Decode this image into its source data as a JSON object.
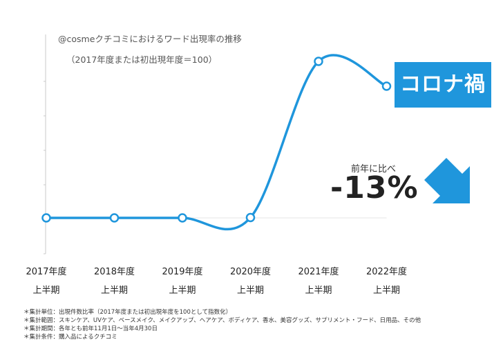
{
  "chart_data": {
    "type": "line",
    "title": "",
    "subtitle_line1": "@cosmeクチコミにおけるワード出現率の推移",
    "subtitle_line2": "（2017年度または初出現年度＝100）",
    "x": [
      {
        "year": "2017年度",
        "period": "上半期"
      },
      {
        "year": "2018年度",
        "period": "上半期"
      },
      {
        "year": "2019年度",
        "period": "上半期"
      },
      {
        "year": "2020年度",
        "period": "上半期"
      },
      {
        "year": "2021年度",
        "period": "上半期"
      },
      {
        "year": "2022年度",
        "period": "上半期"
      }
    ],
    "series": [
      {
        "values": [
          100,
          100,
          100,
          101,
          554,
          482
        ],
        "color": "#1f96dc"
      }
    ],
    "ylim": [
      0,
      620
    ],
    "y_ticks": [
      100,
      200,
      300,
      400,
      500,
      600
    ],
    "grid": false,
    "annotation_badge": "コロナ禍",
    "annotation_compare_label": "前年に比べ",
    "annotation_change_value": "-13%",
    "annotation_arrow": "down-right-arrow",
    "accent_color": "#1f96dc"
  },
  "notes": [
    "＊集計単位：出現件数比率（2017年度または初出現年度を100として指数化）",
    "＊集計範囲：スキンケア、UVケア、ベースメイク、メイクアップ、ヘアケア、ボディケア、香水、美容グッズ、サプリメント・フード、日用品、その他",
    "＊集計期間：各年とも前年11月1日〜当年4月30日",
    "＊集計条件：購入品によるクチコミ"
  ]
}
